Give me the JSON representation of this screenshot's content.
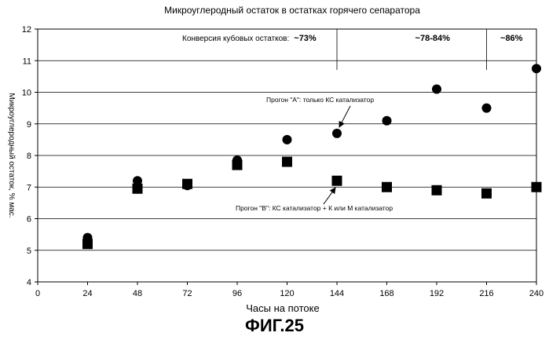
{
  "figure_caption": "ФИГ.25",
  "chart_data": {
    "type": "scatter",
    "title": "Микроуглеродный остаток в остатках горячего сепаратора",
    "xlabel": "Часы на потоке",
    "ylabel": "Микроуглеродный остаток, % мас.",
    "xlim": [
      0,
      240
    ],
    "ylim": [
      4,
      12
    ],
    "x_ticks": [
      0,
      24,
      48,
      72,
      96,
      120,
      144,
      168,
      192,
      216,
      240
    ],
    "y_ticks": [
      4,
      5,
      6,
      7,
      8,
      9,
      10,
      11,
      12
    ],
    "grid": "horizontal",
    "conversion": {
      "label": "Конверсия кубовых остатков:",
      "dividers_x": [
        144,
        216
      ],
      "segments": [
        {
          "x": 120,
          "label": "~73%"
        },
        {
          "x": 190,
          "label": "~78-84%"
        },
        {
          "x": 228,
          "label": "~86%"
        }
      ]
    },
    "series": [
      {
        "name": "Прогон \"А\": только КС катализатор",
        "marker": "circle",
        "x": [
          24,
          48,
          72,
          96,
          120,
          144,
          168,
          192,
          216,
          240
        ],
        "y": [
          5.4,
          7.2,
          7.05,
          7.85,
          8.5,
          8.7,
          9.1,
          10.1,
          9.5,
          10.75
        ]
      },
      {
        "name": "Прогон \"В\": КС катализатор + К или М катализатор",
        "marker": "square",
        "x": [
          24,
          48,
          72,
          96,
          120,
          144,
          168,
          192,
          216,
          240
        ],
        "y": [
          5.2,
          6.95,
          7.1,
          7.7,
          7.8,
          7.2,
          7.0,
          6.9,
          6.8,
          7.0
        ]
      }
    ],
    "annotations": [
      {
        "text": "Прогон \"А\": только КС катализатор",
        "x": 144,
        "y": 8.7
      },
      {
        "text": "Прогон \"В\": КС катализатор + К или М катализатор",
        "x": 144,
        "y": 7.2
      }
    ]
  }
}
